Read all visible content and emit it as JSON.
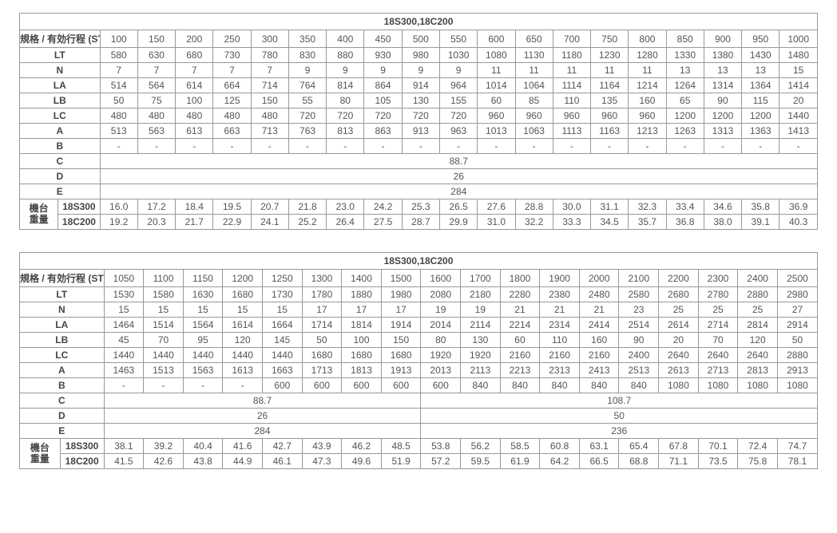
{
  "table1": {
    "title": "18S300,18C200",
    "spec_label": "規格 / 有効行程 (ST)",
    "weight_group_label": "機台\n重量",
    "weight_models": [
      "18S300",
      "18C200"
    ],
    "col_count": 19,
    "st": [
      100,
      150,
      200,
      250,
      300,
      350,
      400,
      450,
      500,
      550,
      600,
      650,
      700,
      750,
      800,
      850,
      900,
      950,
      1000
    ],
    "rows": [
      {
        "label": "LT",
        "values": [
          580,
          630,
          680,
          730,
          780,
          830,
          880,
          930,
          980,
          1030,
          1080,
          1130,
          1180,
          1230,
          1280,
          1330,
          1380,
          1430,
          1480
        ]
      },
      {
        "label": "N",
        "values": [
          7,
          7,
          7,
          7,
          7,
          9,
          9,
          9,
          9,
          9,
          11,
          11,
          11,
          11,
          11,
          13,
          13,
          13,
          15
        ]
      },
      {
        "label": "LA",
        "values": [
          514,
          564,
          614,
          664,
          714,
          764,
          814,
          864,
          914,
          964,
          1014,
          1064,
          1114,
          1164,
          1214,
          1264,
          1314,
          1364,
          1414
        ]
      },
      {
        "label": "LB",
        "values": [
          50,
          75,
          100,
          125,
          150,
          55,
          80,
          105,
          130,
          155,
          60,
          85,
          110,
          135,
          160,
          65,
          90,
          115,
          20
        ]
      },
      {
        "label": "LC",
        "values": [
          480,
          480,
          480,
          480,
          480,
          720,
          720,
          720,
          720,
          720,
          960,
          960,
          960,
          960,
          960,
          1200,
          1200,
          1200,
          1440
        ]
      },
      {
        "label": "A",
        "values": [
          513,
          563,
          613,
          663,
          713,
          763,
          813,
          863,
          913,
          963,
          1013,
          1063,
          1113,
          1163,
          1213,
          1263,
          1313,
          1363,
          1413
        ]
      },
      {
        "label": "B",
        "dashes": 19
      },
      {
        "label": "C",
        "merged": "88.7"
      },
      {
        "label": "D",
        "merged": "26"
      },
      {
        "label": "E",
        "merged": "284"
      }
    ],
    "weights": [
      [
        16.0,
        17.2,
        18.4,
        19.5,
        20.7,
        21.8,
        23.0,
        24.2,
        25.3,
        26.5,
        27.6,
        28.8,
        30.0,
        31.1,
        32.3,
        33.4,
        34.6,
        35.8,
        36.9
      ],
      [
        19.2,
        20.3,
        21.7,
        22.9,
        24.1,
        25.2,
        26.4,
        27.5,
        28.7,
        29.9,
        31.0,
        32.2,
        33.3,
        34.5,
        35.7,
        36.8,
        38.0,
        39.1,
        40.3
      ]
    ]
  },
  "table2": {
    "title": "18S300,18C200",
    "spec_label": "規格 / 有効行程 (ST)",
    "weight_group_label": "機台\n重量",
    "weight_models": [
      "18S300",
      "18C200"
    ],
    "col_count": 18,
    "st": [
      1050,
      1100,
      1150,
      1200,
      1250,
      1300,
      1400,
      1500,
      1600,
      1700,
      1800,
      1900,
      2000,
      2100,
      2200,
      2300,
      2400,
      2500
    ],
    "rows": [
      {
        "label": "LT",
        "values": [
          1530,
          1580,
          1630,
          1680,
          1730,
          1780,
          1880,
          1980,
          2080,
          2180,
          2280,
          2380,
          2480,
          2580,
          2680,
          2780,
          2880,
          2980
        ]
      },
      {
        "label": "N",
        "values": [
          15,
          15,
          15,
          15,
          15,
          17,
          17,
          17,
          19,
          19,
          21,
          21,
          21,
          23,
          25,
          25,
          25,
          27
        ]
      },
      {
        "label": "LA",
        "values": [
          1464,
          1514,
          1564,
          1614,
          1664,
          1714,
          1814,
          1914,
          2014,
          2114,
          2214,
          2314,
          2414,
          2514,
          2614,
          2714,
          2814,
          2914
        ]
      },
      {
        "label": "LB",
        "values": [
          45,
          70,
          95,
          120,
          145,
          50,
          100,
          150,
          80,
          130,
          60,
          110,
          160,
          90,
          20,
          70,
          120,
          50
        ]
      },
      {
        "label": "LC",
        "values": [
          1440,
          1440,
          1440,
          1440,
          1440,
          1680,
          1680,
          1680,
          1920,
          1920,
          2160,
          2160,
          2160,
          2400,
          2640,
          2640,
          2640,
          2880
        ]
      },
      {
        "label": "A",
        "values": [
          1463,
          1513,
          1563,
          1613,
          1663,
          1713,
          1813,
          1913,
          2013,
          2113,
          2213,
          2313,
          2413,
          2513,
          2613,
          2713,
          2813,
          2913
        ]
      },
      {
        "label": "B",
        "dash_then_values": {
          "dashes": 4,
          "values": [
            600,
            600,
            600,
            600,
            600,
            840,
            840,
            840,
            840,
            840,
            1080,
            1080,
            1080,
            1080
          ]
        }
      },
      {
        "label": "C",
        "merged_split": {
          "first": {
            "span": 8,
            "text": "88.7"
          },
          "second": {
            "span": 10,
            "text": "108.7"
          }
        }
      },
      {
        "label": "D",
        "merged_split": {
          "first": {
            "span": 8,
            "text": "26"
          },
          "second": {
            "span": 10,
            "text": "50"
          }
        }
      },
      {
        "label": "E",
        "merged_split": {
          "first": {
            "span": 8,
            "text": "284"
          },
          "second": {
            "span": 10,
            "text": "236"
          }
        }
      }
    ],
    "weights": [
      [
        38.1,
        39.2,
        40.4,
        41.6,
        42.7,
        43.9,
        46.2,
        48.5,
        53.8,
        56.2,
        58.5,
        60.8,
        63.1,
        65.4,
        67.8,
        70.1,
        72.4,
        74.7
      ],
      [
        41.5,
        42.6,
        43.8,
        44.9,
        46.1,
        47.3,
        49.6,
        51.9,
        57.2,
        59.5,
        61.9,
        64.2,
        66.5,
        68.8,
        71.1,
        73.5,
        75.8,
        78.1
      ]
    ]
  }
}
